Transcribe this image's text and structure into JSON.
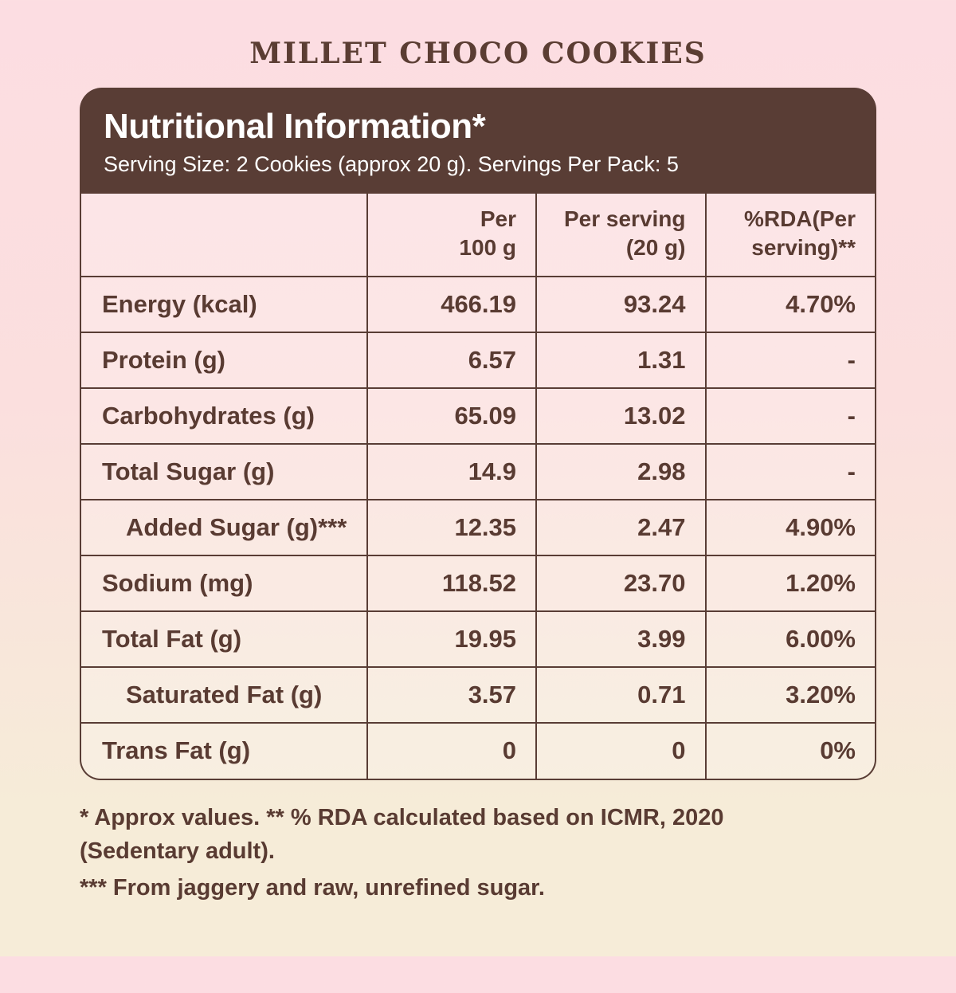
{
  "page_title": "MILLET CHOCO COOKIES",
  "panel": {
    "title": "Nutritional Information*",
    "subtitle": "Serving Size: 2 Cookies (approx 20 g). Servings Per Pack: 5"
  },
  "table": {
    "columns": {
      "label": "",
      "per100": "Per\n100 g",
      "perServing": "Per serving\n(20 g)",
      "rda": "%RDA(Per\nserving)**"
    },
    "rows": [
      {
        "label": "Energy (kcal)",
        "per100": "466.19",
        "perServing": "93.24",
        "rda": "4.70%"
      },
      {
        "label": "Protein (g)",
        "per100": "6.57",
        "perServing": "1.31",
        "rda": "-"
      },
      {
        "label": "Carbohydrates (g)",
        "per100": "65.09",
        "perServing": "13.02",
        "rda": "-"
      },
      {
        "label": "Total Sugar (g)",
        "per100": "14.9",
        "perServing": "2.98",
        "rda": "-"
      },
      {
        "label": "Added Sugar (g)***",
        "per100": "12.35",
        "perServing": "2.47",
        "rda": "4.90%"
      },
      {
        "label": "Sodium (mg)",
        "per100": "118.52",
        "perServing": "23.70",
        "rda": "1.20%"
      },
      {
        "label": "Total Fat (g)",
        "per100": "19.95",
        "perServing": "3.99",
        "rda": "6.00%"
      },
      {
        "label": "Saturated Fat (g)",
        "per100": "3.57",
        "perServing": "0.71",
        "rda": "3.20%"
      },
      {
        "label": "Trans Fat (g)",
        "per100": "0",
        "perServing": "0",
        "rda": "0%"
      }
    ]
  },
  "footnotes": {
    "note1": "* Approx values. ** % RDA calculated based on ICMR, 2020 (Sedentary adult).",
    "note2": "*** From jaggery and raw, unrefined sugar."
  },
  "colors": {
    "brown": "#593d35",
    "header_text": "#ffffff",
    "background_top": "#fcdde2",
    "background_bottom": "#f6ecd8"
  }
}
